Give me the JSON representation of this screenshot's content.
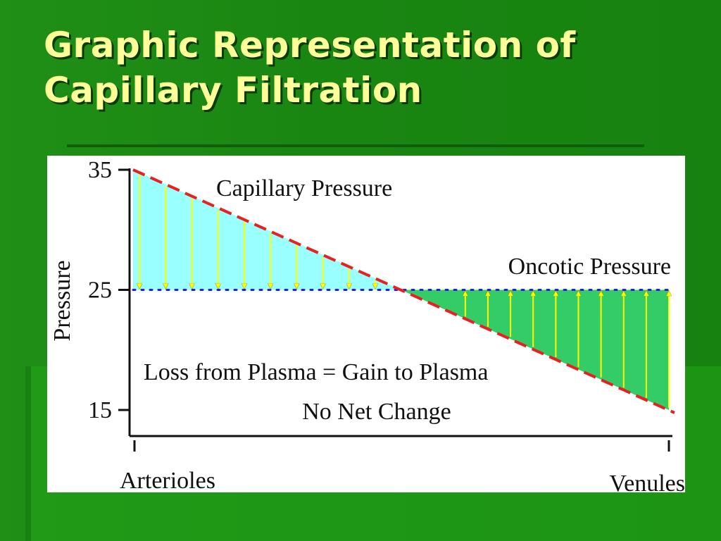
{
  "slide": {
    "title_line1": "Graphic Representation of",
    "title_line2": "Capillary Filtration"
  },
  "colors": {
    "background": "#1a8612",
    "title": "#ffff99",
    "capillary_line": "#e82020",
    "oncotic_line": "#2222dd",
    "filtration_fill": "#99ffff",
    "reabsorption_fill": "#33cc66",
    "arrow": "#ffff00"
  },
  "chart_data": {
    "type": "line",
    "title": "",
    "xlabel": "",
    "ylabel": "Pressure",
    "x_start_label": "Arterioles",
    "x_end_label": "Venules",
    "y_ticks": [
      15,
      25,
      35
    ],
    "y_tick_labels": [
      "15",
      "25",
      "35"
    ],
    "ylim": [
      15,
      35
    ],
    "x": [
      0,
      1
    ],
    "series": [
      {
        "name": "Capillary Pressure",
        "values": [
          35,
          15
        ],
        "style": "dashed",
        "color": "#e82020"
      },
      {
        "name": "Oncotic Pressure",
        "values": [
          25,
          25
        ],
        "style": "dotted",
        "color": "#2222dd"
      }
    ],
    "filtration_region": {
      "fill": "#99ffff",
      "arrow_direction": "down"
    },
    "reabsorption_region": {
      "fill": "#33cc66",
      "arrow_direction": "up"
    },
    "annotations": {
      "line1": "Loss from Plasma = Gain to Plasma",
      "line2": "No Net Change"
    },
    "grid": false
  }
}
